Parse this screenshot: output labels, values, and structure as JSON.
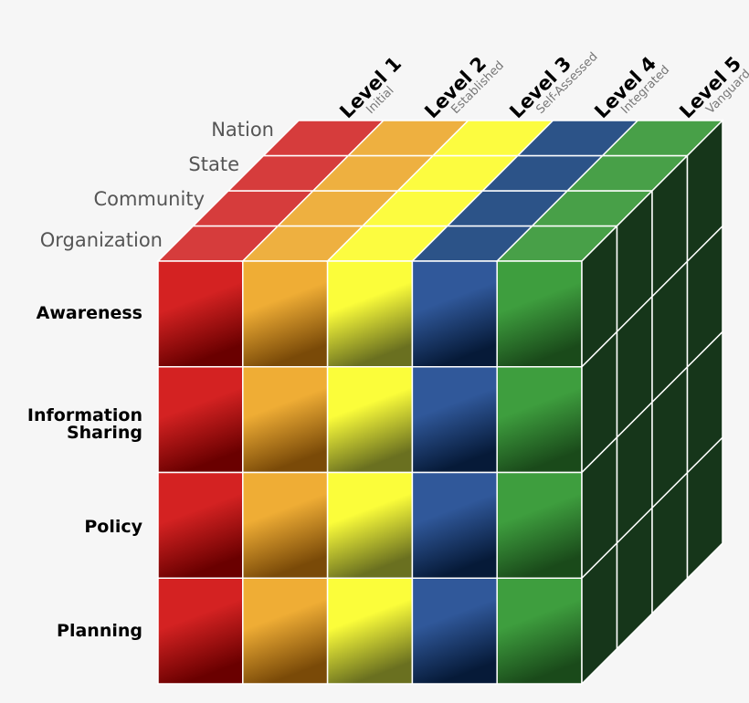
{
  "levels": [
    {
      "title": "Level 1",
      "subtitle": "Initial",
      "color": "#d63c3c",
      "front": [
        "#d42222",
        "#6a0000"
      ]
    },
    {
      "title": "Level 2",
      "subtitle": "Established",
      "color": "#eeb040",
      "front": [
        "#efad35",
        "#7a4a08"
      ]
    },
    {
      "title": "Level 3",
      "subtitle": "Self-Assessed",
      "color": "#fcfc40",
      "front": [
        "#fbfd3a",
        "#6a7020"
      ]
    },
    {
      "title": "Level 4",
      "subtitle": "Integrated",
      "color": "#2c5388",
      "front": [
        "#30589a",
        "#061a38"
      ]
    },
    {
      "title": "Level 5",
      "subtitle": "Vanguard",
      "color": "#48a048",
      "front": [
        "#3e9e3e",
        "#1a4a1a"
      ]
    }
  ],
  "depth_labels": [
    "Nation",
    "State",
    "Community",
    "Organization"
  ],
  "row_labels": [
    "Awareness",
    "Information Sharing",
    "Policy",
    "Planning"
  ],
  "side_color": "#16361a"
}
